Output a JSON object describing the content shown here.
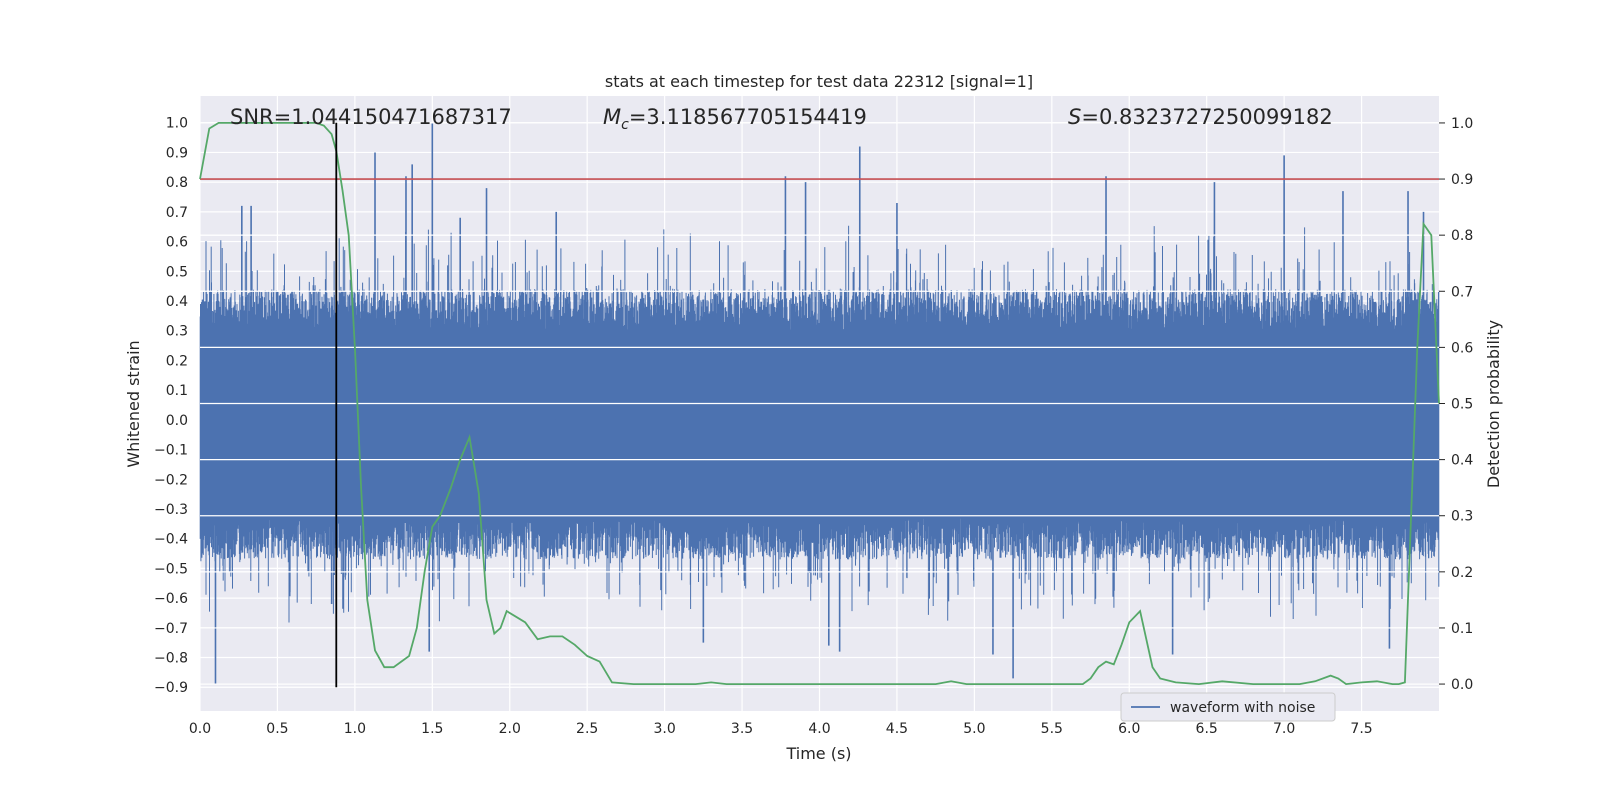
{
  "chart_data": {
    "type": "line",
    "title": "stats at each timestep for test data 22312 [signal=1]",
    "xlabel": "Time (s)",
    "ylabel_left": "Whitened strain",
    "ylabel_right": "Detection probability",
    "xlim": [
      0.0,
      8.0
    ],
    "ylim_left": [
      -0.98,
      1.09
    ],
    "ylim_right": [
      -0.048,
      1.048
    ],
    "x_ticks": [
      0.0,
      0.5,
      1.0,
      1.5,
      2.0,
      2.5,
      3.0,
      3.5,
      4.0,
      4.5,
      5.0,
      5.5,
      6.0,
      6.5,
      7.0,
      7.5
    ],
    "x_tick_labels": [
      "0.0",
      "0.5",
      "1.0",
      "1.5",
      "2.0",
      "2.5",
      "3.0",
      "3.5",
      "4.0",
      "4.5",
      "5.0",
      "5.5",
      "6.0",
      "6.5",
      "7.0",
      "7.5"
    ],
    "y_left_ticks": [
      1.0,
      0.9,
      0.8,
      0.7,
      0.6,
      0.5,
      0.4,
      0.3,
      0.2,
      0.1,
      0.0,
      -0.1,
      -0.2,
      -0.3,
      -0.4,
      -0.5,
      -0.6,
      -0.7,
      -0.8,
      -0.9
    ],
    "y_left_tick_labels": [
      "1.0",
      "0.9",
      "0.8",
      "0.7",
      "0.6",
      "0.5",
      "0.4",
      "0.3",
      "0.2",
      "0.1",
      "0.0",
      "−0.1",
      "−0.2",
      "−0.3",
      "−0.4",
      "−0.5",
      "−0.6",
      "−0.7",
      "−0.8",
      "−0.9"
    ],
    "y_right_ticks": [
      1.0,
      0.9,
      0.8,
      0.7,
      0.6,
      0.5,
      0.4,
      0.3,
      0.2,
      0.1,
      0.0
    ],
    "y_right_tick_labels": [
      "1.0",
      "0.9",
      "0.8",
      "0.7",
      "0.6",
      "0.5",
      "0.4",
      "0.3",
      "0.2",
      "0.1",
      "0.0"
    ],
    "grid": true,
    "legend_placement": "lower-right",
    "annotations": {
      "snr": "SNR=1.044150471687317",
      "mc_symbol": "M",
      "mc_subscript": "c",
      "mc_value": "=3.118567705154419",
      "s_symbol": "S",
      "s_value": "=0.8323727250099182"
    },
    "series": [
      {
        "name": "waveform with noise",
        "axis": "left",
        "color": "#4c72b0",
        "spikes": [
          {
            "x": 0.1,
            "y": -0.89
          },
          {
            "x": 0.27,
            "y": 0.72
          },
          {
            "x": 0.33,
            "y": 0.72
          },
          {
            "x": 0.58,
            "y": -0.58
          },
          {
            "x": 0.85,
            "y": -0.62
          },
          {
            "x": 1.13,
            "y": 0.9
          },
          {
            "x": 1.33,
            "y": 0.82
          },
          {
            "x": 1.37,
            "y": 0.86
          },
          {
            "x": 1.48,
            "y": -0.78
          },
          {
            "x": 1.5,
            "y": 1.0
          },
          {
            "x": 1.68,
            "y": 0.68
          },
          {
            "x": 1.85,
            "y": 0.78
          },
          {
            "x": 2.3,
            "y": 0.7
          },
          {
            "x": 3.25,
            "y": -0.75
          },
          {
            "x": 3.78,
            "y": 0.82
          },
          {
            "x": 3.91,
            "y": 0.8
          },
          {
            "x": 4.06,
            "y": -0.76
          },
          {
            "x": 4.13,
            "y": -0.78
          },
          {
            "x": 4.26,
            "y": 0.92
          },
          {
            "x": 4.5,
            "y": 0.73
          },
          {
            "x": 5.12,
            "y": -0.79
          },
          {
            "x": 5.25,
            "y": -0.87
          },
          {
            "x": 5.85,
            "y": 0.82
          },
          {
            "x": 6.28,
            "y": -0.79
          },
          {
            "x": 6.55,
            "y": 0.8
          },
          {
            "x": 7.0,
            "y": 0.89
          },
          {
            "x": 7.38,
            "y": 0.77
          },
          {
            "x": 7.68,
            "y": -0.77
          },
          {
            "x": 7.8,
            "y": 0.77
          },
          {
            "x": 7.9,
            "y": 0.7
          }
        ]
      },
      {
        "name": "",
        "axis": "right",
        "color": "#55a868",
        "x": [
          0.0,
          0.06,
          0.12,
          0.2,
          0.3,
          0.4,
          0.5,
          0.6,
          0.7,
          0.75,
          0.8,
          0.85,
          0.88,
          0.92,
          0.96,
          1.0,
          1.04,
          1.08,
          1.13,
          1.19,
          1.25,
          1.3,
          1.35,
          1.4,
          1.45,
          1.5,
          1.55,
          1.62,
          1.68,
          1.74,
          1.8,
          1.85,
          1.9,
          1.94,
          1.98,
          2.04,
          2.1,
          2.18,
          2.26,
          2.34,
          2.42,
          2.5,
          2.58,
          2.66,
          2.8,
          3.0,
          3.2,
          3.3,
          3.4,
          3.6,
          3.8,
          4.0,
          4.2,
          4.4,
          4.6,
          4.75,
          4.85,
          4.95,
          5.1,
          5.3,
          5.5,
          5.6,
          5.7,
          5.75,
          5.8,
          5.85,
          5.9,
          5.95,
          6.0,
          6.07,
          6.15,
          6.2,
          6.3,
          6.45,
          6.6,
          6.8,
          7.0,
          7.1,
          7.2,
          7.3,
          7.35,
          7.4,
          7.5,
          7.6,
          7.7,
          7.74,
          7.78,
          7.82,
          7.86,
          7.9,
          7.95,
          8.0
        ],
        "y": [
          0.9,
          0.99,
          1.0,
          1.0,
          1.0,
          1.0,
          1.0,
          1.0,
          1.0,
          1.0,
          0.995,
          0.98,
          0.95,
          0.88,
          0.8,
          0.6,
          0.35,
          0.15,
          0.06,
          0.03,
          0.03,
          0.04,
          0.05,
          0.1,
          0.2,
          0.28,
          0.3,
          0.35,
          0.4,
          0.44,
          0.34,
          0.15,
          0.09,
          0.1,
          0.13,
          0.12,
          0.11,
          0.08,
          0.085,
          0.085,
          0.07,
          0.05,
          0.04,
          0.003,
          0.0,
          0.0,
          0.0,
          0.003,
          0.0,
          0.0,
          0.0,
          0.0,
          0.0,
          0.0,
          0.0,
          0.0,
          0.005,
          0.0,
          0.0,
          0.0,
          0.0,
          0.0,
          0.0,
          0.01,
          0.03,
          0.04,
          0.035,
          0.07,
          0.11,
          0.13,
          0.03,
          0.01,
          0.003,
          0.0,
          0.005,
          0.0,
          0.0,
          0.0,
          0.005,
          0.015,
          0.01,
          0.0,
          0.003,
          0.005,
          0.0,
          0.0,
          0.003,
          0.3,
          0.6,
          0.82,
          0.8,
          0.5
        ]
      },
      {
        "name": "",
        "axis": "right",
        "color": "#c44e52",
        "constant": 0.9
      }
    ],
    "vertical_line": {
      "x": 0.88,
      "y_from": -0.9,
      "y_to": 1.0,
      "axis": "left",
      "color": "#000000"
    }
  }
}
